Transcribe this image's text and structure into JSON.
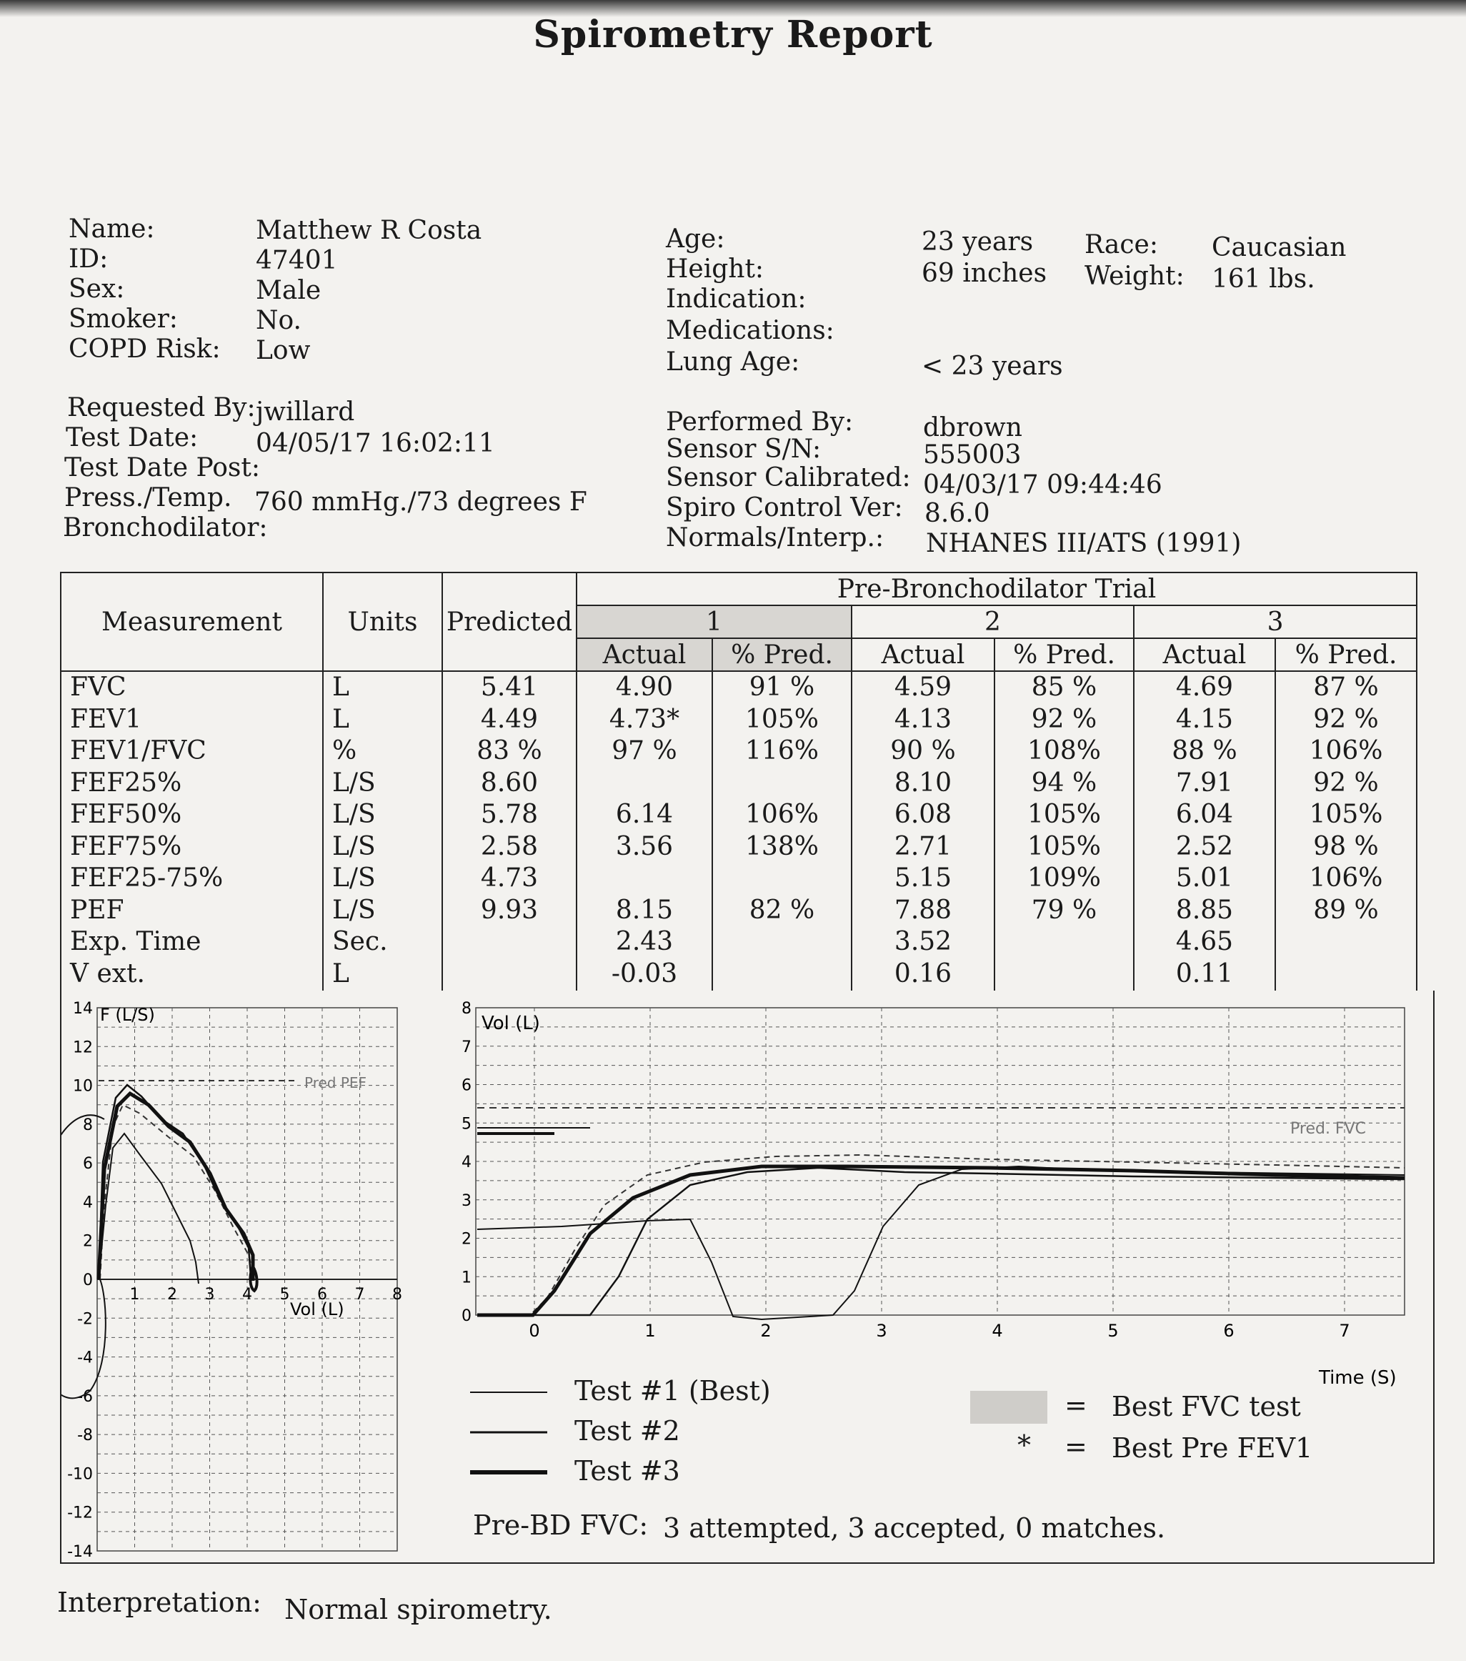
{
  "title": "Spirometry Report",
  "patient": {
    "left": [
      {
        "label": "Name:",
        "value": "Matthew R Costa"
      },
      {
        "label": "ID:",
        "value": "47401"
      },
      {
        "label": "Sex:",
        "value": "Male"
      },
      {
        "label": "Smoker:",
        "value": "No."
      },
      {
        "label": "COPD Risk:",
        "value": "Low"
      }
    ],
    "mid": [
      {
        "label": "Age:",
        "value": "23 years"
      },
      {
        "label": "Height:",
        "value": "69 inches"
      },
      {
        "label": "Indication:",
        "value": ""
      },
      {
        "label": "Medications:",
        "value": ""
      },
      {
        "label": "Lung Age:",
        "value": "< 23 years"
      }
    ],
    "right": [
      {
        "label": "Race:",
        "value": "Caucasian"
      },
      {
        "label": "Weight:",
        "value": "161  lbs."
      }
    ]
  },
  "test": {
    "left": [
      {
        "label": "Requested By:",
        "value": "jwillard"
      },
      {
        "label": "Test Date:",
        "value": "04/05/17  16:02:11"
      },
      {
        "label": "Test Date Post:",
        "value": ""
      },
      {
        "label": "Press./Temp.",
        "value": "760  mmHg./73 degrees F"
      },
      {
        "label": "Bronchodilator:",
        "value": ""
      }
    ],
    "right": [
      {
        "label": "Performed By:",
        "value": "dbrown"
      },
      {
        "label": "Sensor S/N:",
        "value": "555003"
      },
      {
        "label": "Sensor Calibrated:",
        "value": "04/03/17 09:44:46"
      },
      {
        "label": "Spiro Control Ver:",
        "value": "8.6.0"
      },
      {
        "label": "Normals/Interp.:",
        "value": "NHANES III/ATS (1991)"
      }
    ]
  },
  "table": {
    "headers": {
      "measurement": "Measurement",
      "units": "Units",
      "predicted": "Predicted",
      "trial": "Pre-Bronchodilator Trial",
      "trial_nums": [
        "1",
        "2",
        "3"
      ],
      "actual": "Actual",
      "pct": "% Pred."
    },
    "measurements": [
      "FVC",
      "FEV1",
      "FEV1/FVC",
      "FEF25%",
      "FEF50%",
      "FEF75%",
      "FEF25-75%",
      "PEF",
      "Exp. Time",
      "V ext."
    ],
    "units": [
      "L",
      "L",
      "%",
      "L/S",
      "L/S",
      "L/S",
      "L/S",
      "L/S",
      "Sec.",
      "L"
    ],
    "predicted": [
      "5.41",
      "4.49",
      "83 %",
      "8.60",
      "5.78",
      "2.58",
      "4.73",
      "9.93",
      "",
      ""
    ],
    "trials": [
      {
        "actual": [
          "4.90",
          "4.73*",
          "97 %",
          "",
          "6.14",
          "3.56",
          "",
          "8.15",
          "2.43",
          "-0.03"
        ],
        "pct": [
          "91 %",
          "105%",
          "116%",
          "",
          "106%",
          "138%",
          "",
          "82 %",
          "",
          ""
        ]
      },
      {
        "actual": [
          "4.59",
          "4.13",
          "90 %",
          "8.10",
          "6.08",
          "2.71",
          "5.15",
          "7.88",
          "3.52",
          "0.16"
        ],
        "pct": [
          "85 %",
          "92 %",
          "108%",
          "94 %",
          "105%",
          "105%",
          "109%",
          "79 %",
          "",
          ""
        ]
      },
      {
        "actual": [
          "4.69",
          "4.15",
          "88 %",
          "7.91",
          "6.04",
          "2.52",
          "5.01",
          "8.85",
          "4.65",
          "0.11"
        ],
        "pct": [
          "87 %",
          "92 %",
          "106%",
          "92 %",
          "105%",
          "98 %",
          "106%",
          "89 %",
          "",
          ""
        ]
      }
    ]
  },
  "flow_volume": {
    "y_label": "F (L/S)",
    "x_label": "Vol (L)",
    "pred_label": "Pred PEF",
    "y_ticks": [
      "14",
      "12",
      "10",
      "8",
      "6",
      "4",
      "2",
      "0",
      "-2",
      "-4",
      "-6",
      "-8",
      "-10",
      "-12",
      "-14"
    ],
    "x_ticks": [
      "1",
      "2",
      "3",
      "4",
      "5",
      "6",
      "7",
      "8"
    ]
  },
  "volume_time": {
    "y_label": "Vol (L)",
    "x_label": "Time (S)",
    "pred_label": "Pred. FVC",
    "y_ticks": [
      "8",
      "7",
      "6",
      "5",
      "4",
      "3",
      "2",
      "1",
      "0"
    ],
    "x_ticks": [
      "0",
      "1",
      "2",
      "3",
      "4",
      "5",
      "6",
      "7"
    ]
  },
  "legend": {
    "tests": [
      "Test #1 (Best)",
      "Test #2",
      "Test #3"
    ],
    "eq": "=",
    "best_fvc": "Best FVC test",
    "star": "*",
    "best_fev1": "Best Pre FEV1",
    "fvc_label": "Pre-BD FVC:",
    "fvc_value": "3 attempted, 3 accepted, 0 matches."
  },
  "interpretation": {
    "label": "Interpretation:",
    "value": "Normal spirometry."
  }
}
